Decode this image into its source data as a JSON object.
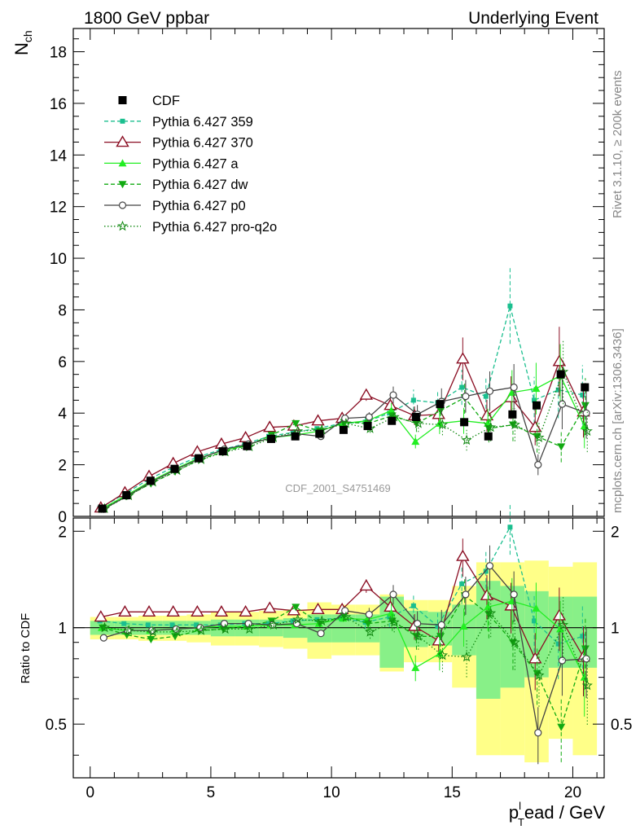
{
  "header": {
    "left_title": "1800 GeV ppbar",
    "right_title": "Underlying Event"
  },
  "side_labels": {
    "rivet": "Rivet 3.1.10, ≥ 200k events",
    "mcplots": "mcplots.cern.ch [arXiv:1306.3436]"
  },
  "analysis_label": "CDF_2001_S4751469",
  "chart_data": {
    "type": "line",
    "x": [
      0.5,
      1.5,
      2.5,
      3.5,
      4.5,
      5.5,
      6.5,
      7.5,
      8.5,
      9.5,
      10.5,
      11.5,
      12.5,
      13.5,
      14.5,
      15.5,
      16.5,
      17.5,
      18.5,
      19.5,
      20.5
    ],
    "xlim": [
      -0.7,
      21.3
    ],
    "x_ticks": [
      0,
      5,
      10,
      15,
      20
    ],
    "xlabel_main": "p",
    "xlabel_sub": "T",
    "xlabel_sup": "l",
    "xlabel_rest": "ead / GeV",
    "upper": {
      "ylabel_main": "N",
      "ylabel_sub": "ch",
      "ylim": [
        0,
        18.9
      ],
      "y_ticks": [
        0,
        2,
        4,
        6,
        8,
        10,
        12,
        14,
        16,
        18
      ],
      "legend_position": "top-left",
      "data": {
        "name": "CDF",
        "values": [
          0.3,
          0.82,
          1.38,
          1.84,
          2.25,
          2.52,
          2.72,
          3.0,
          3.1,
          3.2,
          3.35,
          3.5,
          3.7,
          3.85,
          4.35,
          3.65,
          3.1,
          3.95,
          4.3,
          5.5,
          5.0
        ]
      },
      "series": [
        {
          "name": "Pythia 6.427 359",
          "color": "#1bbf8f",
          "dash": "dashed",
          "marker": "square",
          "values": [
            0.32,
            0.85,
            1.42,
            1.88,
            2.28,
            2.58,
            2.8,
            3.1,
            3.25,
            3.4,
            3.6,
            3.65,
            4.0,
            4.5,
            4.4,
            5.0,
            4.65,
            8.15,
            4.5,
            4.9,
            4.7
          ]
        },
        {
          "name": "Pythia 6.427 370",
          "color": "#8b0f24",
          "dash": "solid",
          "marker": "triangle-open",
          "values": [
            0.33,
            0.92,
            1.55,
            2.05,
            2.5,
            2.8,
            3.05,
            3.45,
            3.5,
            3.7,
            3.8,
            4.7,
            4.3,
            3.9,
            3.95,
            6.1,
            3.9,
            4.6,
            3.45,
            6.0,
            4.05
          ]
        },
        {
          "name": "Pythia 6.427 a",
          "color": "#22ee22",
          "dash": "solid",
          "marker": "triangle",
          "values": [
            0.3,
            0.8,
            1.35,
            1.82,
            2.25,
            2.55,
            2.75,
            3.05,
            3.15,
            3.3,
            3.6,
            3.7,
            4.1,
            2.9,
            3.6,
            3.7,
            3.6,
            4.8,
            4.95,
            5.45,
            3.5
          ]
        },
        {
          "name": "Pythia 6.427 dw",
          "color": "#11aa11",
          "dash": "dashed",
          "marker": "triangle-down",
          "values": [
            0.3,
            0.78,
            1.27,
            1.73,
            2.2,
            2.5,
            2.75,
            3.15,
            3.6,
            3.3,
            3.65,
            3.6,
            3.9,
            3.6,
            4.1,
            4.6,
            3.4,
            3.55,
            3.1,
            2.7,
            4.3
          ]
        },
        {
          "name": "Pythia 6.427 p0",
          "color": "#444444",
          "dash": "solid",
          "marker": "circle-open",
          "values": [
            0.28,
            0.8,
            1.35,
            1.82,
            2.25,
            2.6,
            2.8,
            3.05,
            3.2,
            3.1,
            3.8,
            3.85,
            4.7,
            3.95,
            4.45,
            4.65,
            4.85,
            5.0,
            2.0,
            4.35,
            4.0
          ]
        },
        {
          "name": "Pythia 6.427 pro-q2o",
          "color": "#118811",
          "dash": "dotted",
          "marker": "star",
          "values": [
            0.3,
            0.8,
            1.33,
            1.78,
            2.2,
            2.5,
            2.7,
            3.05,
            3.3,
            3.35,
            3.6,
            3.4,
            3.85,
            3.6,
            3.55,
            2.95,
            3.45,
            3.55,
            3.05,
            5.6,
            3.3
          ]
        }
      ]
    },
    "lower": {
      "ylabel": "Ratio to CDF",
      "ylim": [
        0.34,
        2.2
      ],
      "y_ticks": [
        0.5,
        1,
        2
      ],
      "band_inner": [
        0.05,
        0.05,
        0.05,
        0.05,
        0.05,
        0.06,
        0.06,
        0.06,
        0.07,
        0.1,
        0.1,
        0.1,
        0.25,
        0.13,
        0.12,
        0.18,
        0.4,
        0.35,
        0.3,
        0.25,
        0.25
      ],
      "band_outer": [
        0.08,
        0.08,
        0.09,
        0.09,
        0.1,
        0.12,
        0.12,
        0.13,
        0.14,
        0.2,
        0.18,
        0.18,
        0.27,
        0.22,
        0.22,
        0.35,
        0.6,
        0.6,
        0.62,
        0.55,
        0.6
      ],
      "series": [
        {
          "name": "Pythia 6.427 359",
          "values": [
            1.05,
            1.03,
            1.02,
            1.02,
            1.02,
            1.02,
            1.03,
            1.03,
            1.05,
            1.06,
            1.07,
            1.04,
            1.08,
            1.17,
            1.01,
            1.37,
            1.5,
            2.06,
            1.05,
            0.89,
            0.94
          ]
        },
        {
          "name": "Pythia 6.427 370",
          "values": [
            1.08,
            1.12,
            1.12,
            1.12,
            1.12,
            1.12,
            1.12,
            1.15,
            1.13,
            1.14,
            1.14,
            1.35,
            1.16,
            1.01,
            0.91,
            1.67,
            1.26,
            1.17,
            0.8,
            1.09,
            0.81
          ]
        },
        {
          "name": "Pythia 6.427 a",
          "values": [
            1.0,
            0.98,
            0.98,
            0.99,
            1.0,
            1.01,
            1.01,
            1.02,
            1.02,
            1.03,
            1.07,
            1.06,
            1.11,
            0.75,
            0.83,
            1.01,
            1.16,
            1.21,
            1.15,
            0.99,
            0.7
          ]
        },
        {
          "name": "Pythia 6.427 dw",
          "values": [
            1.0,
            0.95,
            0.92,
            0.94,
            0.98,
            0.99,
            1.01,
            1.05,
            1.16,
            1.03,
            1.09,
            1.03,
            1.05,
            0.94,
            0.94,
            1.26,
            1.1,
            0.9,
            0.72,
            0.49,
            0.86
          ]
        },
        {
          "name": "Pythia 6.427 p0",
          "values": [
            0.93,
            0.98,
            0.98,
            0.99,
            1.0,
            1.03,
            1.03,
            1.02,
            1.03,
            0.96,
            1.13,
            1.1,
            1.27,
            1.03,
            1.02,
            1.27,
            1.56,
            1.27,
            0.47,
            0.79,
            0.8
          ]
        },
        {
          "name": "Pythia 6.427 pro-q2o",
          "values": [
            1.0,
            0.98,
            0.97,
            0.97,
            0.98,
            0.99,
            0.99,
            1.02,
            1.06,
            1.05,
            1.08,
            0.97,
            1.04,
            0.94,
            0.82,
            0.81,
            1.11,
            0.9,
            0.71,
            1.02,
            0.66
          ]
        }
      ]
    }
  }
}
